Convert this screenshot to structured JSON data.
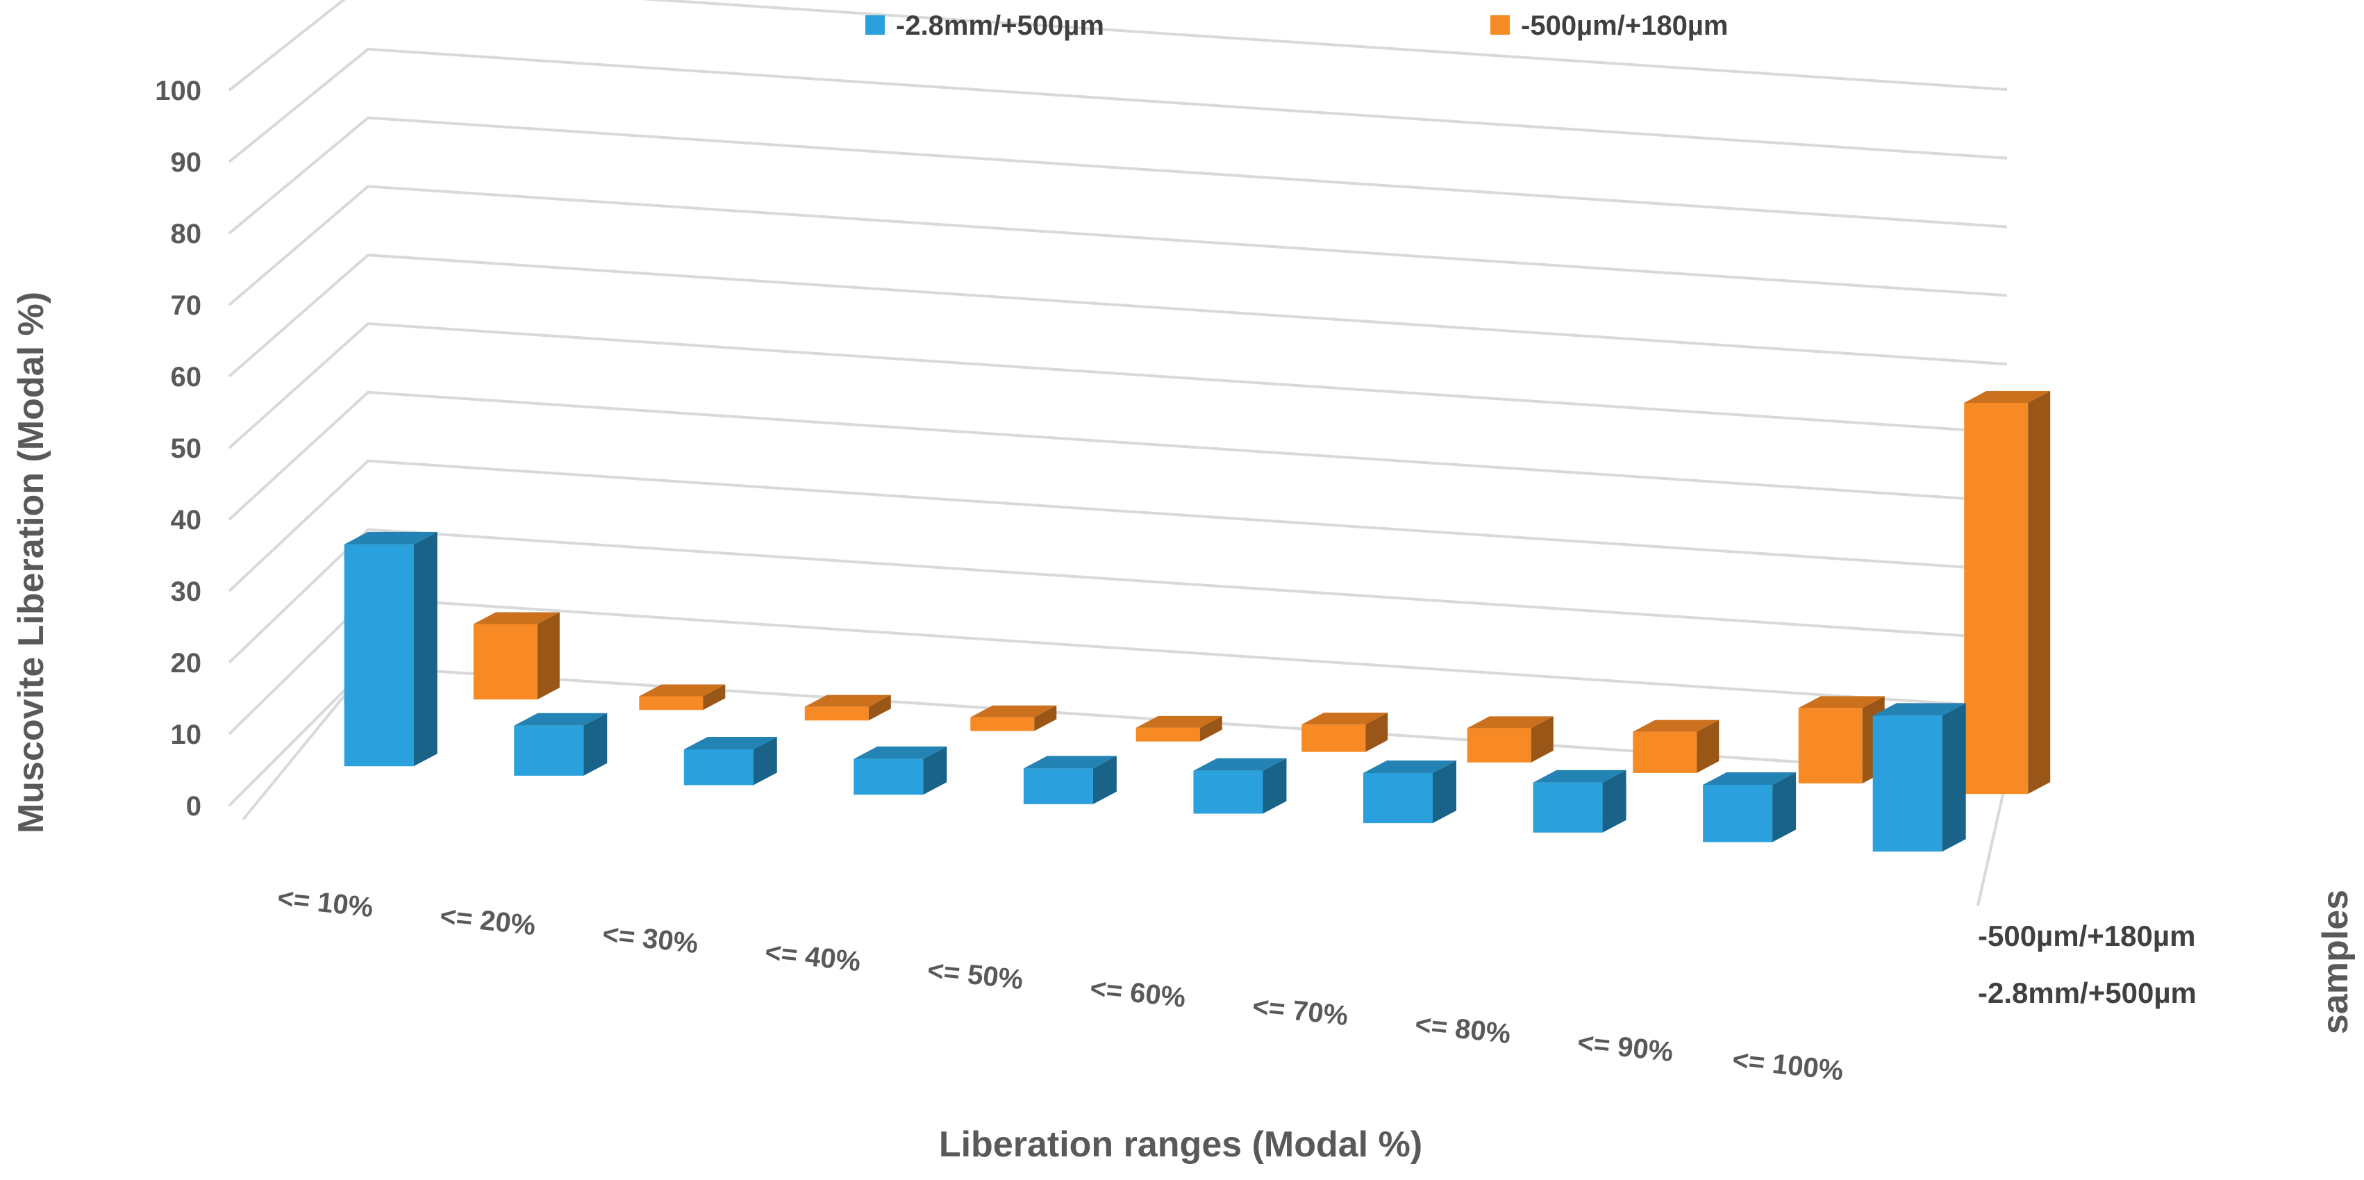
{
  "chart_data": {
    "type": "bar",
    "variant": "3d-column",
    "title": "",
    "xlabel": "Liberation ranges (Modal %)",
    "ylabel": "Muscovite  Liberation (Modal %)",
    "zlabel": "samples",
    "ylim": [
      0,
      100
    ],
    "yticks": [
      0,
      10,
      20,
      30,
      40,
      50,
      60,
      70,
      80,
      90,
      100
    ],
    "categories": [
      "<= 10%",
      "<= 20%",
      "<= 30%",
      "<= 40%",
      "<= 50%",
      "<= 60%",
      "<= 70%",
      "<= 80%",
      "<= 90%",
      "<= 100%"
    ],
    "series": [
      {
        "name": "-2.8mm/+500µm",
        "color": "#2aa0dc",
        "values": [
          31,
          7,
          5,
          5,
          5,
          6,
          7,
          7,
          8,
          19
        ]
      },
      {
        "name": "-500µm/+180µm",
        "color": "#f78a24",
        "values": [
          11,
          2,
          2,
          2,
          2,
          4,
          5,
          6,
          11,
          57
        ]
      }
    ],
    "legend": {
      "position": "top"
    },
    "grid": true
  }
}
